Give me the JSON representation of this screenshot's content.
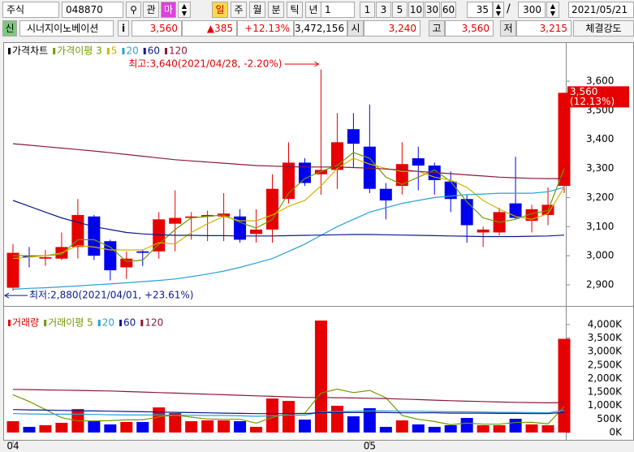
{
  "toolbar": {
    "market": "주식",
    "code": "048870",
    "btn_watch": "관",
    "btn_ma": "마",
    "periods": [
      "일",
      "주",
      "월",
      "분",
      "틱",
      "년"
    ],
    "unit": "1",
    "units": [
      "1",
      "3",
      "5",
      "10",
      "30",
      "60"
    ],
    "count": "35",
    "separator": "/",
    "total": "300",
    "date": "2021/05/21"
  },
  "quote": {
    "badge": "신",
    "name": "시너지이노베이션",
    "info": "i",
    "price": "3,560",
    "change": "▲385",
    "rate": "+12.13%",
    "volume": "3,472,156",
    "open_label": "시",
    "open": "3,240",
    "high_label": "고",
    "high": "3,560",
    "low_label": "저",
    "low": "3,215",
    "strength": "체결강도"
  },
  "chart_data": [
    {
      "type": "candlestick",
      "title": "가격차트",
      "up_color": "#e60000",
      "down_color": "#0000f0",
      "open": [
        2890,
        3000,
        2990,
        2990,
        3030,
        3135,
        3050,
        2960,
        3015,
        3015,
        3110,
        3130,
        3135,
        3135,
        3135,
        3075,
        3090,
        3195,
        3320,
        3280,
        3295,
        3435,
        3375,
        3230,
        3240,
        3335,
        3310,
        3255,
        3195,
        3080,
        3080,
        3180,
        3120,
        3140,
        3240
      ],
      "high": [
        3040,
        3030,
        3020,
        3080,
        3195,
        3140,
        3055,
        3015,
        3020,
        3150,
        3225,
        3150,
        3155,
        3215,
        3160,
        3160,
        3280,
        3390,
        3335,
        3640,
        3490,
        3490,
        3520,
        3250,
        3390,
        3375,
        3320,
        3290,
        3210,
        3100,
        3165,
        3340,
        3175,
        3235,
        3560
      ],
      "low": [
        2880,
        2960,
        2965,
        2985,
        2990,
        2985,
        2915,
        2920,
        2965,
        2990,
        3015,
        3055,
        3050,
        3050,
        3045,
        3045,
        3045,
        3180,
        3240,
        3210,
        3230,
        3305,
        3215,
        3125,
        3210,
        3225,
        3210,
        3150,
        3045,
        3030,
        3070,
        3125,
        3080,
        3105,
        3215
      ],
      "close": [
        3010,
        2995,
        2995,
        3030,
        3140,
        3000,
        2950,
        2990,
        3010,
        3125,
        3130,
        3135,
        3140,
        3145,
        3055,
        3090,
        3230,
        3320,
        3250,
        3295,
        3390,
        3385,
        3230,
        3190,
        3315,
        3310,
        3260,
        3195,
        3105,
        3090,
        3150,
        3130,
        3160,
        3175,
        3560
      ],
      "series": [
        {
          "name": "가격이평 3",
          "color": "#6f9a00",
          "values": [
            3000,
            3000,
            3000,
            3005,
            3055,
            3055,
            3030,
            2980,
            2985,
            3040,
            3090,
            3130,
            3135,
            3140,
            3115,
            3095,
            3125,
            3215,
            3265,
            3290,
            3310,
            3355,
            3335,
            3270,
            3245,
            3270,
            3295,
            3255,
            3185,
            3130,
            3115,
            3125,
            3145,
            3155,
            3300
          ]
        },
        {
          "name": "5",
          "color": "#d2b400",
          "values": [
            2990,
            2995,
            3000,
            3010,
            3035,
            3030,
            3020,
            3020,
            3020,
            3045,
            3040,
            3080,
            3110,
            3135,
            3120,
            3120,
            3140,
            3170,
            3190,
            3240,
            3300,
            3335,
            3315,
            3300,
            3290,
            3290,
            3270,
            3260,
            3235,
            3190,
            3160,
            3135,
            3125,
            3145,
            3235
          ]
        },
        {
          "name": "20",
          "color": "#2aa0d8",
          "values": [
            2885,
            2888,
            2890,
            2893,
            2896,
            2900,
            2903,
            2907,
            2911,
            2915,
            2920,
            2928,
            2937,
            2947,
            2960,
            2975,
            2990,
            3015,
            3040,
            3070,
            3100,
            3125,
            3150,
            3165,
            3180,
            3190,
            3200,
            3205,
            3210,
            3212,
            3215,
            3215,
            3215,
            3220,
            3235
          ]
        },
        {
          "name": "60",
          "color": "#0a1a8c",
          "values": [
            3190,
            3170,
            3150,
            3130,
            3115,
            3100,
            3090,
            3080,
            3075,
            3072,
            3070,
            3070,
            3069,
            3069,
            3068,
            3068,
            3068,
            3069,
            3070,
            3071,
            3072,
            3073,
            3073,
            3072,
            3071,
            3070,
            3069,
            3068,
            3067,
            3066,
            3066,
            3066,
            3067,
            3068,
            3071
          ]
        },
        {
          "name": "120",
          "color": "#8b1a3a",
          "values": [
            3385,
            3380,
            3375,
            3370,
            3365,
            3360,
            3354,
            3348,
            3342,
            3336,
            3330,
            3326,
            3322,
            3318,
            3314,
            3310,
            3308,
            3306,
            3305,
            3305,
            3305,
            3303,
            3301,
            3298,
            3295,
            3290,
            3286,
            3282,
            3278,
            3274,
            3270,
            3268,
            3266,
            3265,
            3265
          ]
        }
      ],
      "ylim": [
        2840,
        3720
      ],
      "yticks": [
        {
          "value": 2900,
          "label": "2,900"
        },
        {
          "value": 3000,
          "label": "3,000"
        },
        {
          "value": 3100,
          "label": "3,100"
        },
        {
          "value": 3200,
          "label": "3,200"
        },
        {
          "value": 3300,
          "label": "3,300"
        },
        {
          "value": 3400,
          "label": "3,400"
        },
        {
          "value": 3500,
          "label": "3,500"
        },
        {
          "value": 3600,
          "label": "3,600"
        }
      ],
      "high_note": {
        "value": 3640,
        "label": "최고:3,640(2021/04/28, -2.20%)"
      },
      "low_note": {
        "value": 2880,
        "label": "최저:2,880(2021/04/01, +23.61%)"
      },
      "last": {
        "value": 3560,
        "label": "3,560",
        "rate": "(12.13%)"
      }
    },
    {
      "type": "bar",
      "title": "거래량",
      "title_color": "#e60000",
      "categories": [
        "04",
        null,
        null,
        null,
        null,
        null,
        null,
        null,
        null,
        null,
        null,
        null,
        null,
        null,
        null,
        null,
        null,
        null,
        null,
        null,
        null,
        null,
        "05",
        null,
        null,
        null,
        null,
        null,
        null,
        null,
        null,
        null,
        null,
        null,
        null
      ],
      "values": [
        420000,
        210000,
        270000,
        360000,
        870000,
        420000,
        300000,
        390000,
        390000,
        930000,
        720000,
        420000,
        450000,
        450000,
        420000,
        210000,
        1260000,
        1170000,
        480000,
        4150000,
        990000,
        600000,
        900000,
        210000,
        450000,
        300000,
        210000,
        270000,
        540000,
        270000,
        270000,
        510000,
        300000,
        270000,
        3472156
      ],
      "series": [
        {
          "name": "거래이평 5",
          "color": "#6f9a00",
          "values": [
            1400000,
            1150000,
            850000,
            550000,
            430000,
            430000,
            440000,
            470000,
            470000,
            580000,
            640000,
            570000,
            500000,
            490000,
            490000,
            350000,
            560000,
            700000,
            720000,
            1460000,
            1610000,
            1480000,
            1560000,
            1290000,
            630000,
            490000,
            410000,
            290000,
            350000,
            310000,
            310000,
            370000,
            380000,
            320000,
            960000
          ]
        },
        {
          "name": "20",
          "color": "#2aa0d8",
          "values": [
            700000,
            690000,
            680000,
            680000,
            680000,
            670000,
            660000,
            650000,
            650000,
            650000,
            640000,
            640000,
            630000,
            630000,
            620000,
            600000,
            620000,
            640000,
            640000,
            760000,
            780000,
            790000,
            800000,
            800000,
            790000,
            790000,
            780000,
            770000,
            770000,
            760000,
            750000,
            750000,
            740000,
            730000,
            820000
          ]
        },
        {
          "name": "60",
          "color": "#0a1a8c",
          "values": [
            850000,
            840000,
            830000,
            820000,
            810000,
            800000,
            790000,
            780000,
            770000,
            760000,
            750000,
            740000,
            730000,
            720000,
            710000,
            700000,
            700000,
            700000,
            700000,
            740000,
            740000,
            740000,
            740000,
            740000,
            730000,
            730000,
            730000,
            720000,
            720000,
            720000,
            710000,
            710000,
            700000,
            700000,
            750000
          ]
        },
        {
          "name": "120",
          "color": "#8b1a3a",
          "values": [
            1600000,
            1590000,
            1580000,
            1570000,
            1560000,
            1550000,
            1540000,
            1520000,
            1500000,
            1480000,
            1460000,
            1440000,
            1420000,
            1400000,
            1380000,
            1360000,
            1340000,
            1320000,
            1300000,
            1300000,
            1290000,
            1280000,
            1270000,
            1260000,
            1240000,
            1220000,
            1200000,
            1180000,
            1160000,
            1150000,
            1130000,
            1120000,
            1110000,
            1100000,
            1110000
          ]
        }
      ],
      "ylim": [
        0,
        4300000
      ],
      "yticks": [
        {
          "value": 0,
          "label": "0K"
        },
        {
          "value": 500000,
          "label": "500K"
        },
        {
          "value": 1000000,
          "label": "1,000K"
        },
        {
          "value": 1500000,
          "label": "1,500K"
        },
        {
          "value": 2000000,
          "label": "2,000K"
        },
        {
          "value": 2500000,
          "label": "2,500K"
        },
        {
          "value": 3000000,
          "label": "3,000K"
        },
        {
          "value": 3500000,
          "label": "3,500K"
        },
        {
          "value": 4000000,
          "label": "4,000K"
        }
      ]
    }
  ]
}
